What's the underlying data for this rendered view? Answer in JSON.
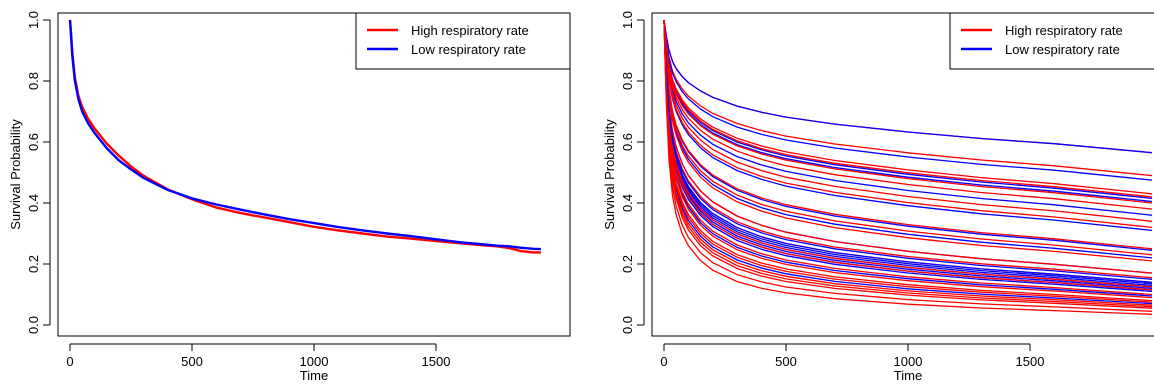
{
  "chart_data": [
    {
      "type": "line",
      "title": "",
      "xlabel": "Time",
      "ylabel": "Survival Probability",
      "xlim": [
        0,
        2000
      ],
      "ylim": [
        0,
        1.0
      ],
      "x_ticks": [
        0,
        500,
        1000,
        1500
      ],
      "y_ticks": [
        0.0,
        0.2,
        0.4,
        0.6,
        0.8,
        1.0
      ],
      "x_tick_labels": [
        "0",
        "500",
        "1000",
        "1500"
      ],
      "y_tick_labels": [
        "0.0",
        "0.2",
        "0.4",
        "0.6",
        "0.8",
        "1.0"
      ],
      "grid": false,
      "legend": {
        "position": "top-right",
        "entries": [
          {
            "label": "High respiratory rate",
            "color": "#ff0000"
          },
          {
            "label": "Low respiratory rate",
            "color": "#0000ff"
          }
        ]
      },
      "series": [
        {
          "name": "High respiratory rate",
          "color": "#ff0000",
          "x": [
            0,
            5,
            10,
            20,
            35,
            50,
            75,
            100,
            150,
            200,
            250,
            300,
            400,
            500,
            600,
            700,
            800,
            900,
            1000,
            1100,
            1200,
            1300,
            1400,
            1500,
            1600,
            1700,
            1750,
            1800,
            1850,
            1900,
            1930
          ],
          "y": [
            1.0,
            0.95,
            0.89,
            0.81,
            0.75,
            0.715,
            0.675,
            0.645,
            0.595,
            0.555,
            0.52,
            0.49,
            0.445,
            0.412,
            0.385,
            0.367,
            0.352,
            0.337,
            0.322,
            0.31,
            0.3,
            0.29,
            0.283,
            0.275,
            0.268,
            0.261,
            0.258,
            0.252,
            0.242,
            0.238,
            0.238
          ]
        },
        {
          "name": "Low respiratory rate",
          "color": "#0000ff",
          "x": [
            0,
            5,
            10,
            20,
            35,
            50,
            75,
            100,
            150,
            200,
            250,
            300,
            400,
            500,
            600,
            700,
            800,
            900,
            1000,
            1100,
            1200,
            1300,
            1400,
            1500,
            1600,
            1700,
            1750,
            1800,
            1850,
            1900,
            1930
          ],
          "y": [
            1.0,
            0.94,
            0.88,
            0.8,
            0.74,
            0.7,
            0.66,
            0.63,
            0.58,
            0.54,
            0.51,
            0.483,
            0.443,
            0.415,
            0.395,
            0.378,
            0.362,
            0.347,
            0.334,
            0.321,
            0.31,
            0.3,
            0.291,
            0.281,
            0.271,
            0.264,
            0.26,
            0.258,
            0.253,
            0.25,
            0.249
          ]
        }
      ]
    },
    {
      "type": "line",
      "title": "",
      "xlabel": "Time",
      "ylabel": "Survival Probability",
      "xlim": [
        0,
        2000
      ],
      "ylim": [
        0,
        1.0
      ],
      "x_ticks": [
        0,
        500,
        1000,
        1500
      ],
      "y_ticks": [
        0.0,
        0.2,
        0.4,
        0.6,
        0.8,
        1.0
      ],
      "x_tick_labels": [
        "0",
        "500",
        "1000",
        "1500"
      ],
      "y_tick_labels": [
        "0.0",
        "0.2",
        "0.4",
        "0.6",
        "0.8",
        "1.0"
      ],
      "grid": false,
      "legend": {
        "position": "top-right",
        "entries": [
          {
            "label": "High respiratory rate",
            "color": "#ff0000"
          },
          {
            "label": "Low respiratory rate",
            "color": "#0000ff"
          }
        ]
      },
      "curve_shape": {
        "x": [
          0,
          5,
          10,
          20,
          35,
          50,
          75,
          100,
          150,
          200,
          300,
          400,
          500,
          700,
          1000,
          1300,
          1600,
          2000
        ],
        "log_survival_unit": [
          0,
          0.0483,
          0.0966,
          0.1803,
          0.2563,
          0.3043,
          0.3603,
          0.4023,
          0.4643,
          0.5123,
          0.5813,
          0.6313,
          0.6713,
          0.7313,
          0.8013,
          0.8613,
          0.9113,
          1.0
        ]
      },
      "series": [
        {
          "name": "High respiratory rate",
          "color": "#ff0000",
          "end_values": [
            0.565,
            0.49,
            0.43,
            0.42,
            0.4,
            0.38,
            0.34,
            0.32,
            0.25,
            0.23,
            0.21,
            0.17,
            0.155,
            0.14,
            0.125,
            0.115,
            0.1,
            0.09,
            0.075,
            0.065,
            0.055,
            0.045,
            0.035,
            0.06,
            0.08
          ]
        },
        {
          "name": "Low respiratory rate",
          "color": "#0000ff",
          "end_values": [
            0.565,
            0.475,
            0.415,
            0.405,
            0.36,
            0.31,
            0.245,
            0.22,
            0.17,
            0.135,
            0.13,
            0.125,
            0.12,
            0.115,
            0.11,
            0.095,
            0.07,
            0.15,
            0.14
          ]
        }
      ]
    }
  ]
}
